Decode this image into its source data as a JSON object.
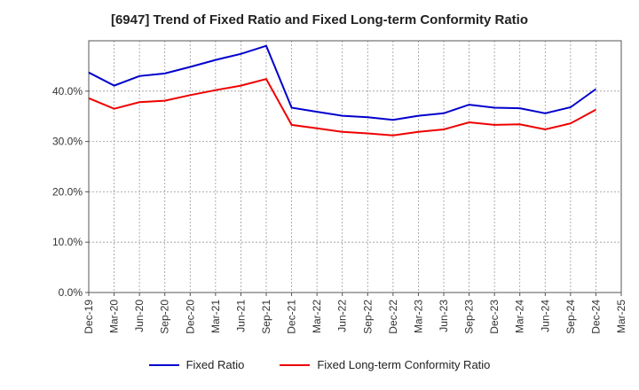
{
  "title": "[6947]  Trend of Fixed Ratio and Fixed Long-term Conformity Ratio",
  "chart_data": {
    "type": "line",
    "title": "[6947]  Trend of Fixed Ratio and Fixed Long-term Conformity Ratio",
    "x_tick_labels": [
      "Dec-19",
      "Mar-20",
      "Jun-20",
      "Sep-20",
      "Dec-20",
      "Mar-21",
      "Jun-21",
      "Sep-21",
      "Dec-21",
      "Mar-22",
      "Jun-22",
      "Sep-22",
      "Dec-22",
      "Mar-23",
      "Jun-23",
      "Sep-23",
      "Dec-23",
      "Mar-24",
      "Jun-24",
      "Sep-24",
      "Dec-24",
      "Mar-25"
    ],
    "y_tick_labels": [
      "0.0%",
      "10.0%",
      "20.0%",
      "30.0%",
      "40.0%"
    ],
    "ylim": [
      0,
      50
    ],
    "grid": true,
    "legend_position": "bottom",
    "series": [
      {
        "name": "Fixed Ratio",
        "color": "#0000cc",
        "values": [
          43.7,
          41.1,
          43.0,
          43.5,
          44.8,
          46.2,
          47.4,
          49.0,
          36.7,
          35.9,
          35.1,
          34.8,
          34.3,
          35.1,
          35.6,
          37.3,
          36.7,
          36.6,
          35.6,
          36.8,
          40.4,
          null
        ]
      },
      {
        "name": "Fixed Long-term Conformity Ratio",
        "color": "#ee0000",
        "values": [
          38.6,
          36.5,
          37.8,
          38.1,
          39.2,
          40.2,
          41.1,
          42.4,
          33.3,
          32.6,
          31.9,
          31.6,
          31.2,
          31.9,
          32.4,
          33.8,
          33.3,
          33.4,
          32.4,
          33.6,
          36.3,
          null
        ]
      }
    ]
  }
}
